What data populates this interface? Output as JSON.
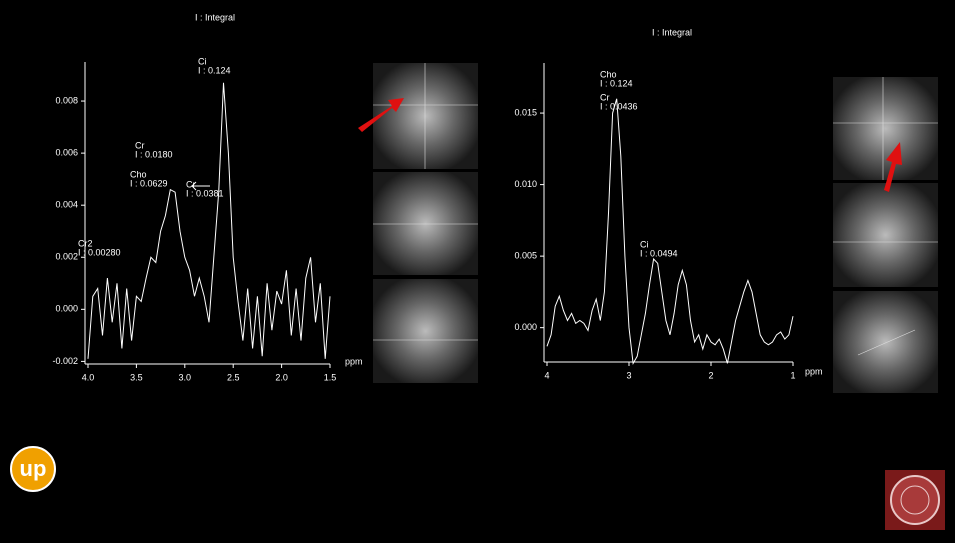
{
  "chart_data": [
    {
      "type": "line",
      "title": "I : Integral",
      "x_label": "ppm",
      "color": "#ffffff",
      "x": [
        4.0,
        3.95,
        3.9,
        3.85,
        3.8,
        3.75,
        3.7,
        3.65,
        3.6,
        3.55,
        3.5,
        3.45,
        3.4,
        3.35,
        3.3,
        3.25,
        3.2,
        3.15,
        3.1,
        3.05,
        3.0,
        2.95,
        2.9,
        2.85,
        2.8,
        2.75,
        2.7,
        2.65,
        2.6,
        2.55,
        2.5,
        2.45,
        2.4,
        2.35,
        2.3,
        2.25,
        2.2,
        2.15,
        2.1,
        2.05,
        2.0,
        1.95,
        1.9,
        1.85,
        1.8,
        1.75,
        1.7,
        1.65,
        1.6,
        1.55,
        1.5
      ],
      "values": [
        -0.0019,
        0.0005,
        0.0008,
        -0.001,
        0.0012,
        -0.0005,
        0.001,
        -0.0015,
        0.0008,
        -0.0012,
        0.0005,
        0.0003,
        0.0012,
        0.002,
        0.0018,
        0.003,
        0.0036,
        0.0046,
        0.0045,
        0.003,
        0.002,
        0.0015,
        0.0005,
        0.0012,
        0.0005,
        -0.0005,
        0.002,
        0.0045,
        0.0087,
        0.006,
        0.002,
        0.0003,
        -0.0012,
        0.0008,
        -0.0015,
        0.0005,
        -0.0018,
        0.001,
        -0.0008,
        0.0007,
        0.0002,
        0.0015,
        -0.001,
        0.0008,
        -0.0012,
        0.0012,
        0.002,
        -0.0005,
        0.001,
        -0.0019,
        0.0005
      ],
      "xlim": [
        4.0,
        1.5
      ],
      "xticks": [
        {
          "value": 4,
          "label": "4.0"
        },
        3.5,
        {
          "value": 3,
          "label": "3.0"
        },
        2.5,
        {
          "value": 2,
          "label": "2.0"
        },
        1.5
      ],
      "ylim": [
        -0.0021,
        0.0095
      ],
      "yticks": [
        -0.002,
        {
          "value": 0,
          "label": "0.000"
        },
        0.002,
        0.004,
        0.006,
        0.008
      ],
      "annotations": [
        [
          "Ci",
          "I : 0.124"
        ],
        [
          "Cr",
          "I : 0.0180"
        ],
        [
          "Cho",
          "I : 0.0629"
        ],
        [
          "Cr",
          "I : 0.0381"
        ],
        [
          "Cr2",
          "I : 0.00280"
        ]
      ]
    },
    {
      "type": "line",
      "title": "I : Integral",
      "x_label": "ppm",
      "color": "#ffffff",
      "x": [
        4.0,
        3.95,
        3.9,
        3.85,
        3.8,
        3.75,
        3.7,
        3.65,
        3.6,
        3.55,
        3.5,
        3.45,
        3.4,
        3.35,
        3.3,
        3.25,
        3.2,
        3.15,
        3.1,
        3.05,
        3.0,
        2.95,
        2.9,
        2.85,
        2.8,
        2.75,
        2.7,
        2.65,
        2.6,
        2.55,
        2.5,
        2.45,
        2.4,
        2.35,
        2.3,
        2.25,
        2.2,
        2.15,
        2.1,
        2.05,
        2.0,
        1.95,
        1.9,
        1.85,
        1.8,
        1.75,
        1.7,
        1.65,
        1.6,
        1.55,
        1.5,
        1.45,
        1.4,
        1.35,
        1.3,
        1.25,
        1.2,
        1.15,
        1.1,
        1.05,
        1.0
      ],
      "values": [
        -0.0013,
        -0.0005,
        0.0015,
        0.0022,
        0.0012,
        0.0005,
        0.001,
        0.0003,
        0.0005,
        0.0003,
        -0.0002,
        0.0012,
        0.002,
        0.0005,
        0.0025,
        0.008,
        0.015,
        0.016,
        0.012,
        0.005,
        0.0,
        -0.0025,
        -0.002,
        -0.0005,
        0.001,
        0.003,
        0.0048,
        0.0045,
        0.0025,
        0.0005,
        -0.0005,
        0.001,
        0.003,
        0.004,
        0.003,
        0.0005,
        -0.001,
        -0.0005,
        -0.0015,
        -0.0005,
        -0.001,
        -0.0012,
        -0.0008,
        -0.0015,
        -0.0025,
        -0.001,
        0.0005,
        0.0015,
        0.0025,
        0.0033,
        0.0025,
        0.001,
        -0.0005,
        -0.001,
        -0.0012,
        -0.001,
        -0.0005,
        -0.0003,
        -0.0008,
        -0.0005,
        0.0008
      ],
      "xlim": [
        4,
        1
      ],
      "xticks": [
        4,
        3,
        2,
        1
      ],
      "ylim": [
        -0.0024,
        0.0185
      ],
      "yticks": [
        {
          "value": 0,
          "label": "0.000"
        },
        0.005,
        {
          "value": 0.01,
          "label": "0.010"
        },
        0.015
      ],
      "annotations": [
        [
          "Cho",
          "I : 0.124"
        ],
        [
          "Cr",
          "I : 0.0436"
        ],
        [
          "Ci",
          "I : 0.0494"
        ]
      ]
    }
  ],
  "logo": "up"
}
